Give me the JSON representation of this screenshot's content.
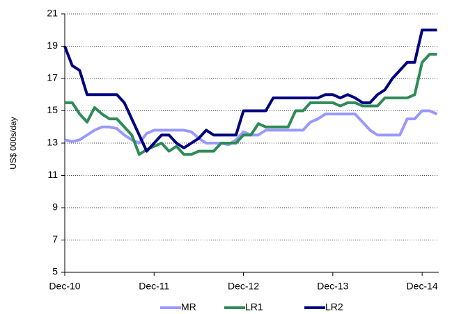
{
  "chart_data": {
    "type": "line",
    "y_label": "US$ 000s/day",
    "categories": [
      "Dec-10",
      null,
      null,
      null,
      null,
      null,
      null,
      null,
      null,
      null,
      null,
      null,
      "Dec-11",
      null,
      null,
      null,
      null,
      null,
      null,
      null,
      null,
      null,
      null,
      null,
      "Dec-12",
      null,
      null,
      null,
      null,
      null,
      null,
      null,
      null,
      null,
      null,
      null,
      "Dec-13",
      null,
      null,
      null,
      null,
      null,
      null,
      null,
      null,
      null,
      null,
      null,
      "Dec-14",
      null,
      null
    ],
    "series": [
      {
        "name": "MR",
        "color": "#9999ff",
        "values": [
          13.2,
          13.1,
          13.2,
          13.5,
          13.8,
          14.0,
          14.0,
          13.9,
          13.5,
          13.2,
          13.0,
          13.6,
          13.8,
          13.8,
          13.8,
          13.8,
          13.8,
          13.7,
          13.3,
          13.0,
          13.0,
          13.0,
          12.9,
          13.2,
          13.7,
          13.5,
          13.5,
          13.8,
          13.8,
          13.8,
          13.8,
          13.8,
          13.8,
          14.3,
          14.5,
          14.8,
          14.8,
          14.8,
          14.8,
          14.8,
          14.3,
          13.8,
          13.5,
          13.5,
          13.5,
          13.5,
          14.5,
          14.5,
          15.0,
          15.0,
          14.8
        ]
      },
      {
        "name": "LR1",
        "color": "#2e8b57",
        "values": [
          15.5,
          15.5,
          14.8,
          14.3,
          15.2,
          14.8,
          14.5,
          14.5,
          14.0,
          13.5,
          12.3,
          12.6,
          12.8,
          13.0,
          12.5,
          12.8,
          12.3,
          12.3,
          12.5,
          12.5,
          12.5,
          13.0,
          13.0,
          13.0,
          13.5,
          13.5,
          14.2,
          14.0,
          14.0,
          14.0,
          14.0,
          15.0,
          15.0,
          15.5,
          15.5,
          15.5,
          15.5,
          15.3,
          15.5,
          15.5,
          15.3,
          15.3,
          15.3,
          15.8,
          15.8,
          15.8,
          15.8,
          16.0,
          18.0,
          18.5,
          18.5
        ]
      },
      {
        "name": "LR2",
        "color": "#000080",
        "values": [
          19.0,
          17.8,
          17.5,
          16.0,
          16.0,
          16.0,
          16.0,
          16.0,
          15.5,
          14.5,
          13.5,
          12.5,
          13.0,
          13.5,
          13.5,
          13.0,
          12.7,
          13.0,
          13.3,
          13.8,
          13.5,
          13.5,
          13.5,
          13.5,
          15.0,
          15.0,
          15.0,
          15.0,
          15.8,
          15.8,
          15.8,
          15.8,
          15.8,
          15.8,
          15.8,
          16.0,
          16.0,
          15.8,
          16.0,
          15.8,
          15.5,
          15.5,
          16.0,
          16.3,
          17.0,
          17.5,
          18.0,
          18.0,
          20.0,
          20.0,
          20.0
        ]
      }
    ],
    "ylim": [
      5,
      21
    ],
    "yticks": [
      5,
      7,
      9,
      11,
      13,
      15,
      17,
      19,
      21
    ],
    "grid": true
  }
}
